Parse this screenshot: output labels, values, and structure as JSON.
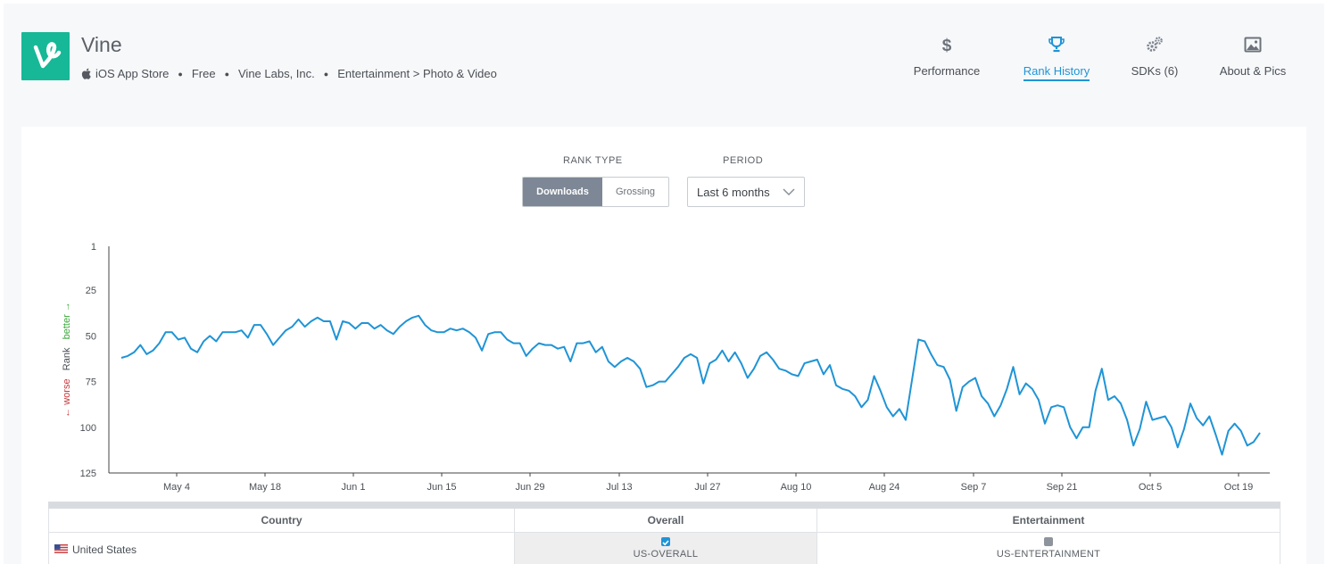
{
  "app": {
    "name": "Vine",
    "store": "iOS App Store",
    "price": "Free",
    "developer": "Vine Labs, Inc.",
    "category": "Entertainment > Photo & Video",
    "logo_color": "#16b897"
  },
  "nav": {
    "tabs": [
      {
        "label": "Performance",
        "icon": "dollar-icon",
        "active": false
      },
      {
        "label": "Rank History",
        "icon": "trophy-icon",
        "active": true
      },
      {
        "label": "SDKs (6)",
        "icon": "gears-icon",
        "active": false
      },
      {
        "label": "About & Pics",
        "icon": "image-icon",
        "active": false
      }
    ],
    "accent_color": "#1f94d6"
  },
  "controls": {
    "rank_type_label": "RANK TYPE",
    "rank_type_options": [
      "Downloads",
      "Grossing"
    ],
    "rank_type_selected": "Downloads",
    "period_label": "PERIOD",
    "period_value": "Last 6 months"
  },
  "chart_data": {
    "type": "line",
    "title": "",
    "xlabel": "",
    "ylabel": "Rank",
    "ylabel_better": "better →",
    "ylabel_worse": "← worse",
    "y_inverted": true,
    "ylim": [
      1,
      125
    ],
    "yticks": [
      1,
      25,
      50,
      75,
      100,
      125
    ],
    "xticks": [
      "May 4",
      "May 18",
      "Jun 1",
      "Jun 15",
      "Jun 29",
      "Jul 13",
      "Jul 27",
      "Aug 10",
      "Aug 24",
      "Sep 7",
      "Sep 21",
      "Oct 5",
      "Oct 19"
    ],
    "x_start": "Apr 25",
    "line_color": "#1f94d6",
    "grid": false,
    "series": [
      {
        "values": [
          62,
          61,
          59,
          55,
          60,
          58,
          54,
          48,
          48,
          52,
          51,
          57,
          59,
          53,
          50,
          53,
          48,
          48,
          48,
          47,
          51,
          44,
          44,
          49,
          55,
          51,
          47,
          45,
          41,
          45,
          42,
          40,
          42,
          42,
          52,
          42,
          43,
          46,
          43,
          43,
          46,
          44,
          47,
          49,
          45,
          42,
          40,
          39,
          44,
          47,
          48,
          48,
          46,
          47,
          46,
          48,
          51,
          58,
          49,
          48,
          48,
          52,
          54,
          54,
          61,
          57,
          54,
          55,
          55,
          57,
          56,
          64,
          54,
          54,
          53,
          59,
          56,
          64,
          67,
          64,
          62,
          64,
          68,
          78,
          77,
          75,
          75,
          71,
          67,
          62,
          60,
          62,
          76,
          65,
          63,
          58,
          64,
          59,
          65,
          73,
          68,
          61,
          59,
          63,
          68,
          69,
          71,
          72,
          65,
          64,
          63,
          71,
          66,
          77,
          79,
          80,
          83,
          89,
          85,
          72,
          80,
          89,
          94,
          90,
          96,
          74,
          52,
          53,
          60,
          66,
          67,
          74,
          91,
          78,
          75,
          73,
          83,
          87,
          94,
          88,
          79,
          67,
          82,
          76,
          79,
          85,
          98,
          89,
          88,
          89,
          100,
          106,
          100,
          100,
          80,
          68,
          85,
          83,
          87,
          96,
          110,
          101,
          86,
          96,
          95,
          94,
          100,
          111,
          101,
          87,
          95,
          99,
          94,
          104,
          115,
          102,
          98,
          102,
          110,
          108,
          103
        ]
      }
    ]
  },
  "table": {
    "columns": [
      "Country",
      "Overall",
      "Entertainment"
    ],
    "rows": [
      {
        "country": "United States",
        "overall": "US-OVERALL",
        "overall_checked": true,
        "category": "US-ENTERTAINMENT",
        "category_checked": false
      }
    ]
  }
}
